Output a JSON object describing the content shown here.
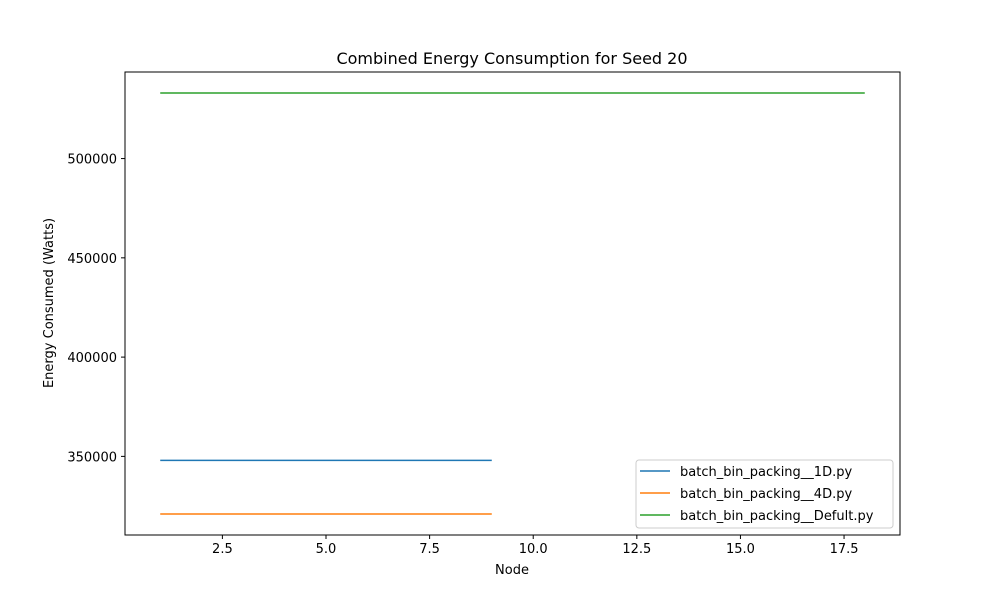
{
  "chart_data": {
    "type": "line",
    "title": "Combined Energy Consumption for Seed 20",
    "xlabel": "Node",
    "ylabel": "Energy Consumed (Watts)",
    "xlim": [
      0.15,
      18.85
    ],
    "ylim": [
      310400,
      543600
    ],
    "xticks": [
      2.5,
      5.0,
      7.5,
      10.0,
      12.5,
      15.0,
      17.5
    ],
    "xtick_labels": [
      "2.5",
      "5.0",
      "7.5",
      "10.0",
      "12.5",
      "15.0",
      "17.5"
    ],
    "yticks": [
      350000,
      400000,
      450000,
      500000
    ],
    "ytick_labels": [
      "350000",
      "400000",
      "450000",
      "500000"
    ],
    "grid": false,
    "legend_position": "lower-right",
    "series": [
      {
        "name": "batch_bin_packing__1D.py",
        "color": "#1f77b4",
        "x": [
          1,
          9
        ],
        "y": [
          348000,
          348000
        ]
      },
      {
        "name": "batch_bin_packing__4D.py",
        "color": "#ff7f0e",
        "x": [
          1,
          9
        ],
        "y": [
          321000,
          321000
        ]
      },
      {
        "name": "batch_bin_packing__Defult.py",
        "color": "#2ca02c",
        "x": [
          1,
          18
        ],
        "y": [
          533000,
          533000
        ]
      }
    ]
  }
}
